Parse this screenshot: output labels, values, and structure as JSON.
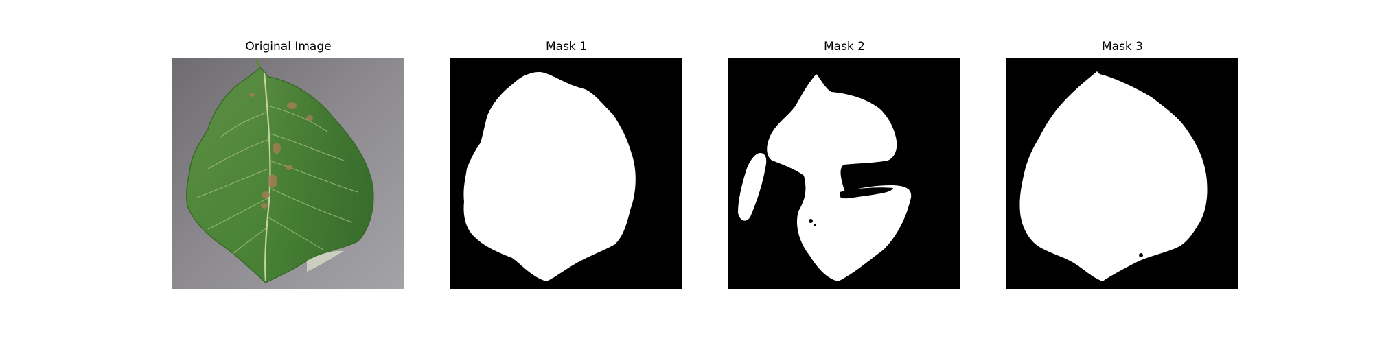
{
  "figure": {
    "panels": [
      {
        "title": "Original Image",
        "kind": "photo"
      },
      {
        "title": "Mask 1",
        "kind": "mask"
      },
      {
        "title": "Mask 2",
        "kind": "mask"
      },
      {
        "title": "Mask 3",
        "kind": "mask"
      }
    ]
  },
  "colors": {
    "mask_background": "#000000",
    "mask_foreground": "#ffffff",
    "photo_background": "#8a8a8e",
    "leaf_green": "#4f8a3a",
    "leaf_dark": "#2f5d27",
    "vein": "#c9d6a8",
    "lesion": "#9a7a55"
  }
}
